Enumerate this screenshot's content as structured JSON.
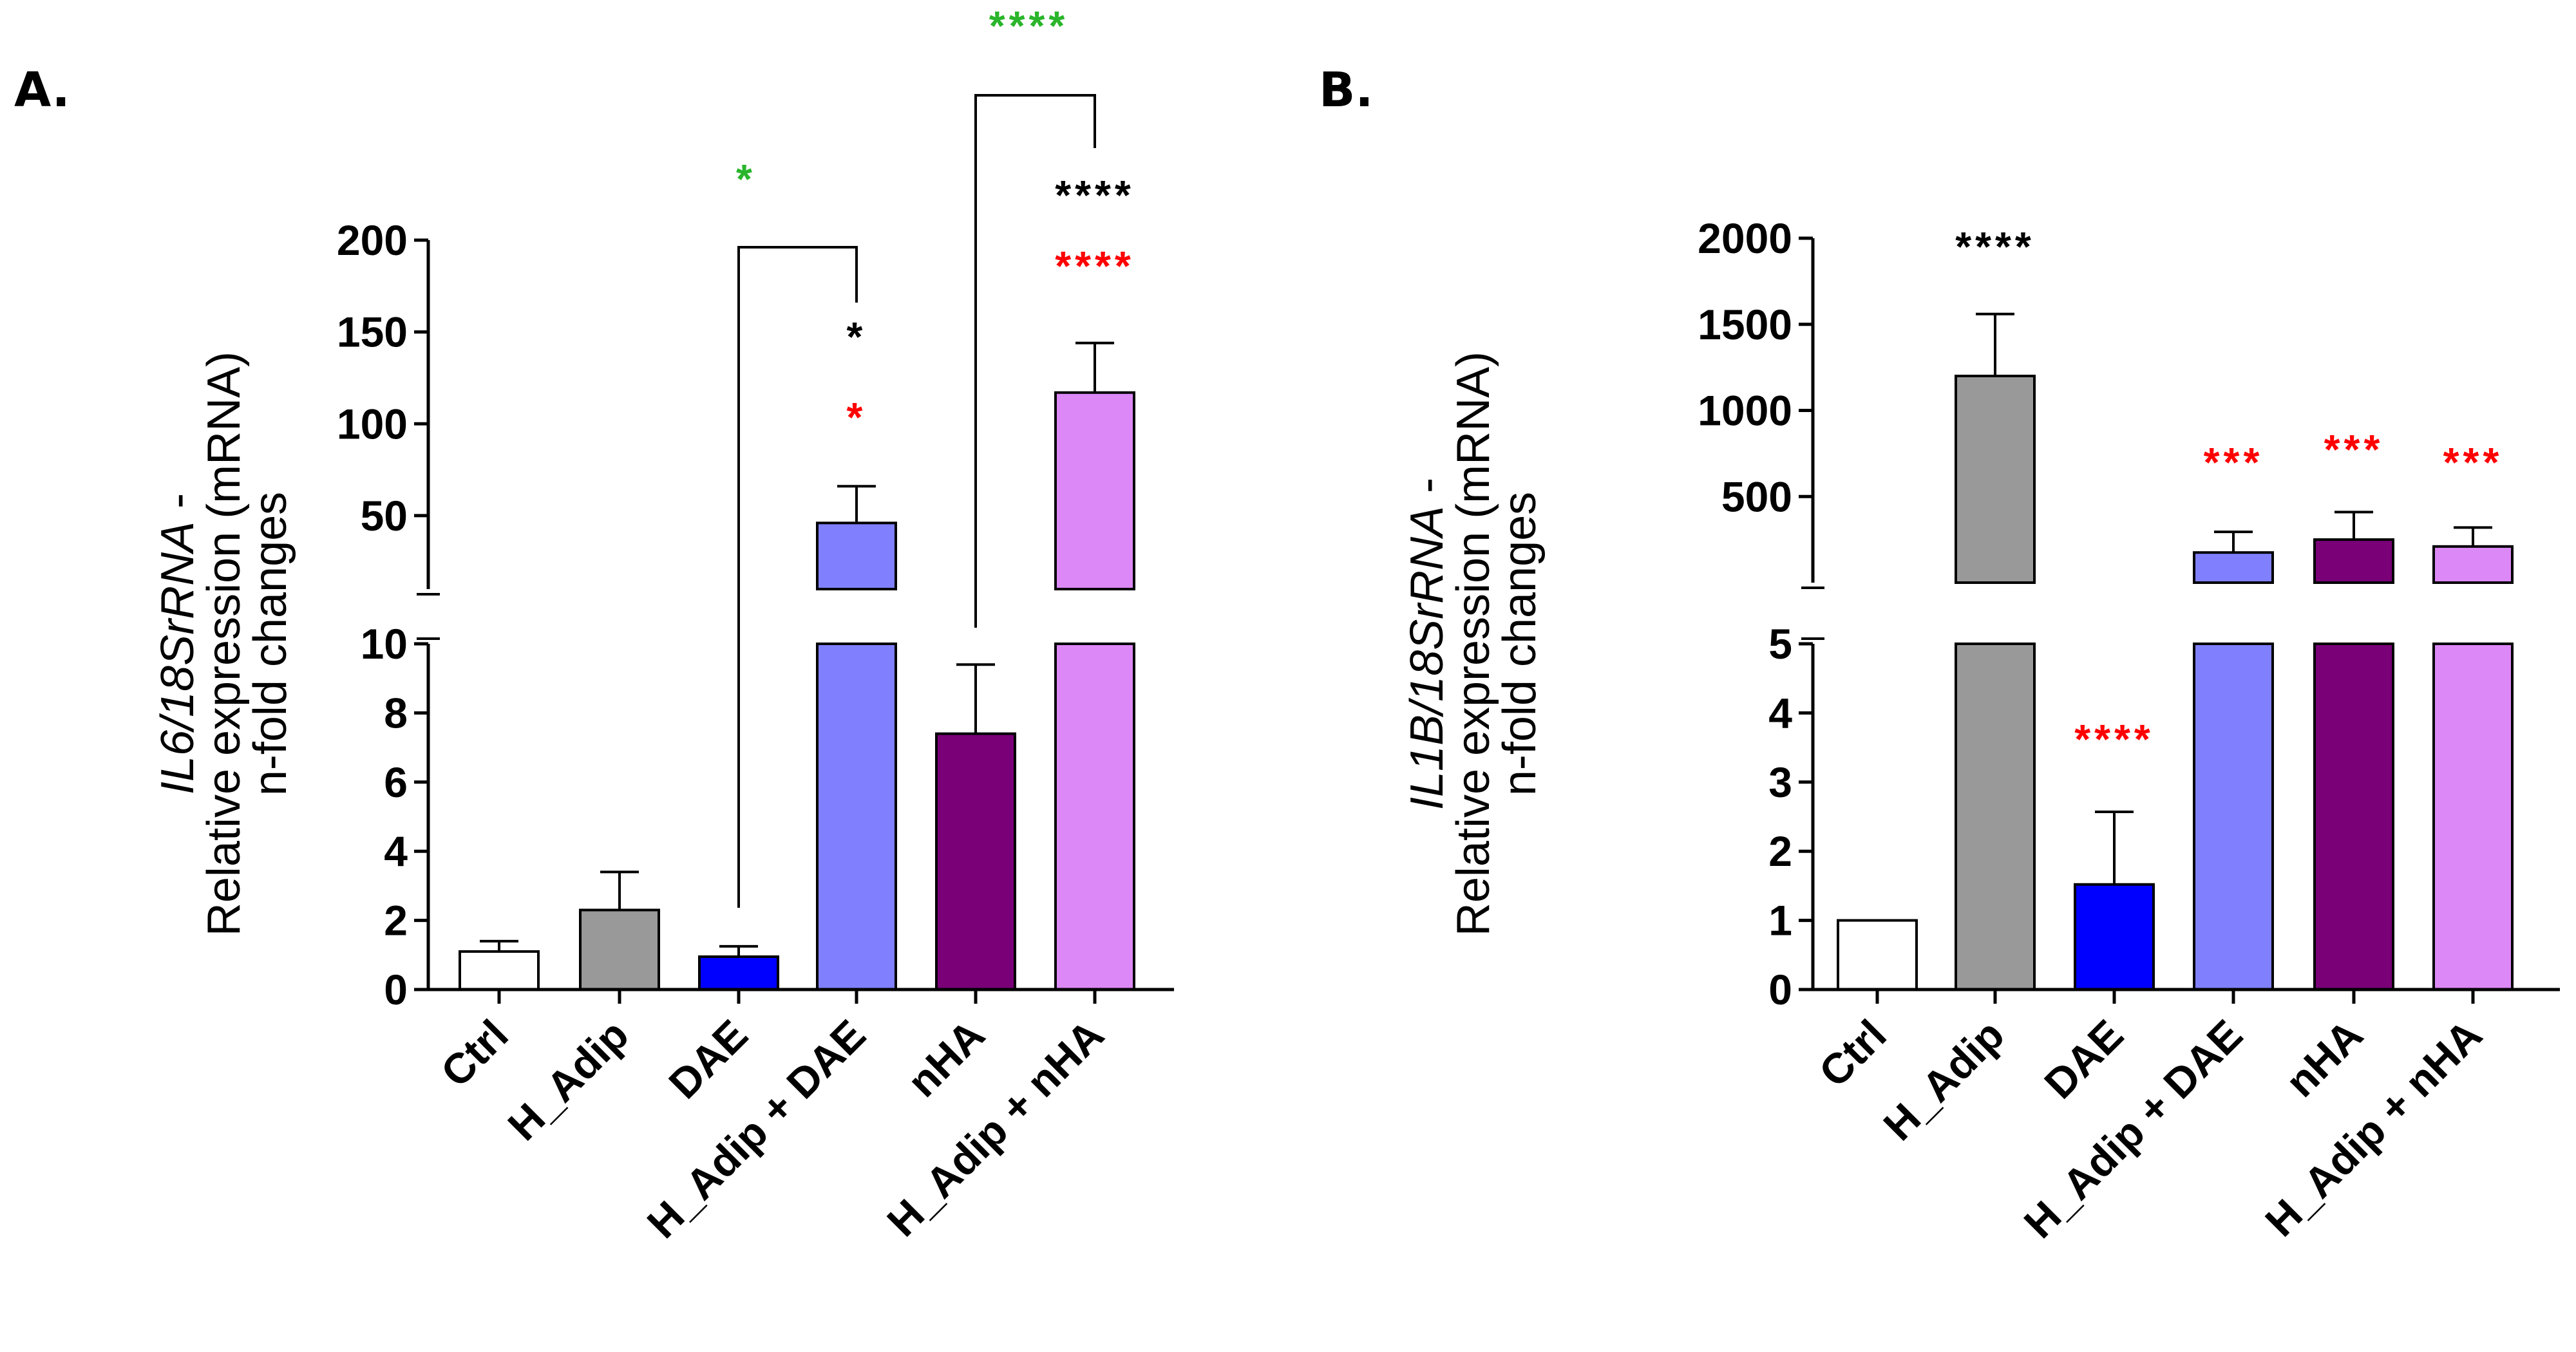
{
  "panel_labels": [
    "A.",
    "B."
  ],
  "colors": {
    "Ctrl": "#ffffff",
    "H_Adip": "#999999",
    "DAE": "#0000ff",
    "H_Adip + DAE": "#8080ff",
    "nHA": "#7a0078",
    "H_Adip + nHA": "#dc88f7",
    "sig_black": "#000000",
    "sig_red": "#ff0000",
    "sig_green": "#2ab52a"
  },
  "chart_data": [
    {
      "id": "A",
      "type": "bar",
      "title": "",
      "ylabel_gene": "IL6/18SrRNA",
      "ylabel_dash": " -",
      "ylabel_line2": "Relative expression (mRNA)",
      "ylabel_line3": "n-fold changes",
      "categories": [
        "Ctrl",
        "H_Adip",
        "DAE",
        "H_Adip + DAE",
        "nHA",
        "H_Adip + nHA"
      ],
      "values": [
        1.1,
        2.3,
        0.95,
        46,
        7.4,
        117
      ],
      "errors": [
        0.3,
        1.1,
        0.3,
        20,
        2.0,
        27
      ],
      "axis_broken": true,
      "lower_range": [
        0,
        10
      ],
      "lower_ticks": [
        "0",
        "2",
        "4",
        "6",
        "8",
        "10"
      ],
      "upper_range": [
        10,
        200
      ],
      "upper_ticks": [
        "50",
        "100",
        "150",
        "200"
      ],
      "significance": [
        {
          "category": "H_Adip + DAE",
          "text": "*",
          "color": "#ff0000"
        },
        {
          "category": "H_Adip + DAE",
          "text": "*",
          "color": "#000000"
        },
        {
          "category": "H_Adip + nHA",
          "text": "****",
          "color": "#ff0000"
        },
        {
          "category": "H_Adip + nHA",
          "text": "****",
          "color": "#000000"
        }
      ],
      "brackets": [
        {
          "from": "DAE",
          "to": "H_Adip + DAE",
          "text": "*",
          "color": "#2ab52a"
        },
        {
          "from": "nHA",
          "to": "H_Adip + nHA",
          "text": "****",
          "color": "#2ab52a"
        }
      ]
    },
    {
      "id": "B",
      "type": "bar",
      "title": "",
      "ylabel_gene": "IL1B/18SrRNA",
      "ylabel_dash": " -",
      "ylabel_line2": "Relative expression (mRNA)",
      "ylabel_line3": "n-fold changes",
      "categories": [
        "Ctrl",
        "H_Adip",
        "DAE",
        "H_Adip + DAE",
        "nHA",
        "H_Adip + nHA"
      ],
      "values": [
        1.0,
        1200,
        1.52,
        175,
        250,
        210
      ],
      "errors": [
        0,
        360,
        1.05,
        120,
        160,
        110
      ],
      "axis_broken": true,
      "lower_range": [
        0,
        5
      ],
      "lower_ticks": [
        "0",
        "1",
        "2",
        "3",
        "4",
        "5"
      ],
      "upper_range": [
        0,
        2000
      ],
      "upper_ticks": [
        "500",
        "1000",
        "1500",
        "2000"
      ],
      "significance": [
        {
          "category": "H_Adip",
          "text": "****",
          "color": "#000000"
        },
        {
          "category": "DAE",
          "text": "****",
          "color": "#ff0000"
        },
        {
          "category": "H_Adip + DAE",
          "text": "***",
          "color": "#ff0000"
        },
        {
          "category": "nHA",
          "text": "***",
          "color": "#ff0000"
        },
        {
          "category": "H_Adip + nHA",
          "text": "***",
          "color": "#ff0000"
        }
      ],
      "brackets": []
    }
  ]
}
